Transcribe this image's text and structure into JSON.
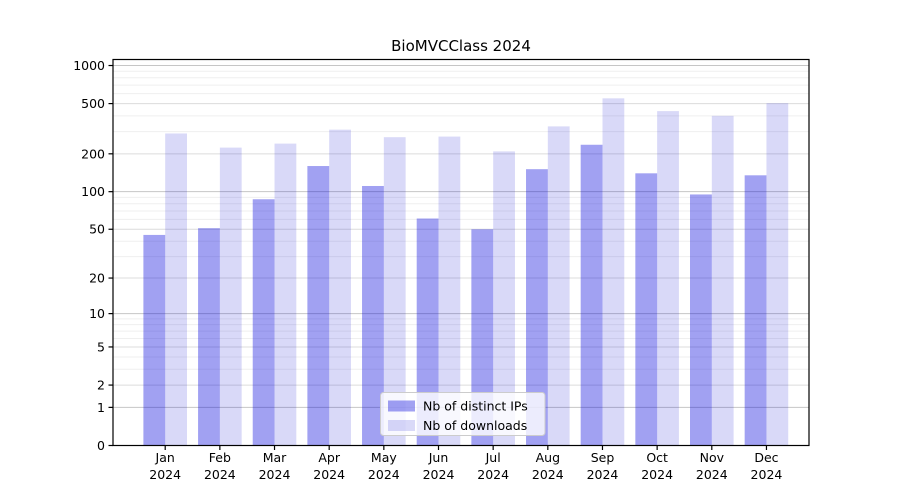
{
  "title": "BioMVCClass 2024",
  "chart_data": {
    "type": "bar",
    "title": "BioMVCClass 2024",
    "categories": [
      "Jan",
      "Feb",
      "Mar",
      "Apr",
      "May",
      "Jun",
      "Jul",
      "Aug",
      "Sep",
      "Oct",
      "Nov",
      "Dec"
    ],
    "category_year": "2024",
    "series": [
      {
        "name": "Nb of distinct IPs",
        "color": "#0000dc",
        "opacity": 0.37,
        "values": [
          45,
          51,
          87,
          160,
          111,
          61,
          50,
          151,
          236,
          140,
          95,
          135
        ]
      },
      {
        "name": "Nb of downloads",
        "color": "#0000d2",
        "opacity": 0.15,
        "values": [
          290,
          224,
          241,
          311,
          271,
          274,
          209,
          330,
          550,
          436,
          400,
          504
        ]
      }
    ],
    "yscale": "log1p",
    "yticks": [
      0,
      1,
      2,
      5,
      10,
      20,
      50,
      100,
      200,
      500,
      1000
    ],
    "ylim": [
      0,
      1100
    ],
    "xlabel": "",
    "ylabel": "",
    "grid": true,
    "legend_position": "lower-center",
    "colors": {
      "grid_major": "#c6c6c6",
      "grid_mid": "#dcdcdc",
      "grid_minor": "#efefef",
      "spine": "#000000",
      "legend_border": "#cccccc"
    }
  }
}
